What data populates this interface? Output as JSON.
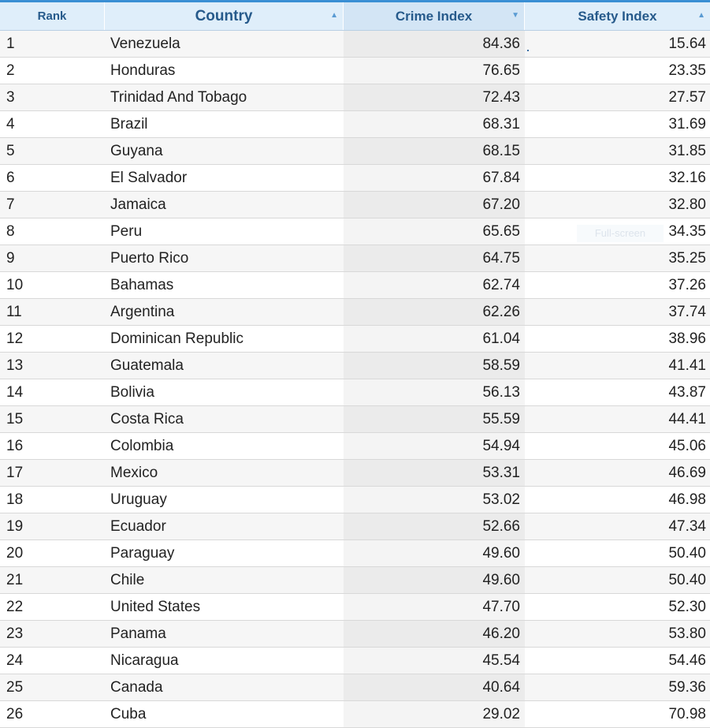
{
  "headers": {
    "rank": "Rank",
    "country": "Country",
    "crime": "Crime Index",
    "safety": "Safety Index"
  },
  "sort_icons": {
    "country": "▲",
    "crime": "▼",
    "safety": "▲"
  },
  "overlay": {
    "full_screen_label": "Full-screen"
  },
  "rows": [
    {
      "rank": "1",
      "country": "Venezuela",
      "crime": "84.36",
      "safety": "15.64"
    },
    {
      "rank": "2",
      "country": "Honduras",
      "crime": "76.65",
      "safety": "23.35"
    },
    {
      "rank": "3",
      "country": "Trinidad And Tobago",
      "crime": "72.43",
      "safety": "27.57"
    },
    {
      "rank": "4",
      "country": "Brazil",
      "crime": "68.31",
      "safety": "31.69"
    },
    {
      "rank": "5",
      "country": "Guyana",
      "crime": "68.15",
      "safety": "31.85"
    },
    {
      "rank": "6",
      "country": "El Salvador",
      "crime": "67.84",
      "safety": "32.16"
    },
    {
      "rank": "7",
      "country": "Jamaica",
      "crime": "67.20",
      "safety": "32.80"
    },
    {
      "rank": "8",
      "country": "Peru",
      "crime": "65.65",
      "safety": "34.35"
    },
    {
      "rank": "9",
      "country": "Puerto Rico",
      "crime": "64.75",
      "safety": "35.25"
    },
    {
      "rank": "10",
      "country": "Bahamas",
      "crime": "62.74",
      "safety": "37.26"
    },
    {
      "rank": "11",
      "country": "Argentina",
      "crime": "62.26",
      "safety": "37.74"
    },
    {
      "rank": "12",
      "country": "Dominican Republic",
      "crime": "61.04",
      "safety": "38.96"
    },
    {
      "rank": "13",
      "country": "Guatemala",
      "crime": "58.59",
      "safety": "41.41"
    },
    {
      "rank": "14",
      "country": "Bolivia",
      "crime": "56.13",
      "safety": "43.87"
    },
    {
      "rank": "15",
      "country": "Costa Rica",
      "crime": "55.59",
      "safety": "44.41"
    },
    {
      "rank": "16",
      "country": "Colombia",
      "crime": "54.94",
      "safety": "45.06"
    },
    {
      "rank": "17",
      "country": "Mexico",
      "crime": "53.31",
      "safety": "46.69"
    },
    {
      "rank": "18",
      "country": "Uruguay",
      "crime": "53.02",
      "safety": "46.98"
    },
    {
      "rank": "19",
      "country": "Ecuador",
      "crime": "52.66",
      "safety": "47.34"
    },
    {
      "rank": "20",
      "country": "Paraguay",
      "crime": "49.60",
      "safety": "50.40"
    },
    {
      "rank": "21",
      "country": "Chile",
      "crime": "49.60",
      "safety": "50.40"
    },
    {
      "rank": "22",
      "country": "United States",
      "crime": "47.70",
      "safety": "52.30"
    },
    {
      "rank": "23",
      "country": "Panama",
      "crime": "46.20",
      "safety": "53.80"
    },
    {
      "rank": "24",
      "country": "Nicaragua",
      "crime": "45.54",
      "safety": "54.46"
    },
    {
      "rank": "25",
      "country": "Canada",
      "crime": "40.64",
      "safety": "59.36"
    },
    {
      "rank": "26",
      "country": "Cuba",
      "crime": "29.02",
      "safety": "70.98"
    }
  ]
}
